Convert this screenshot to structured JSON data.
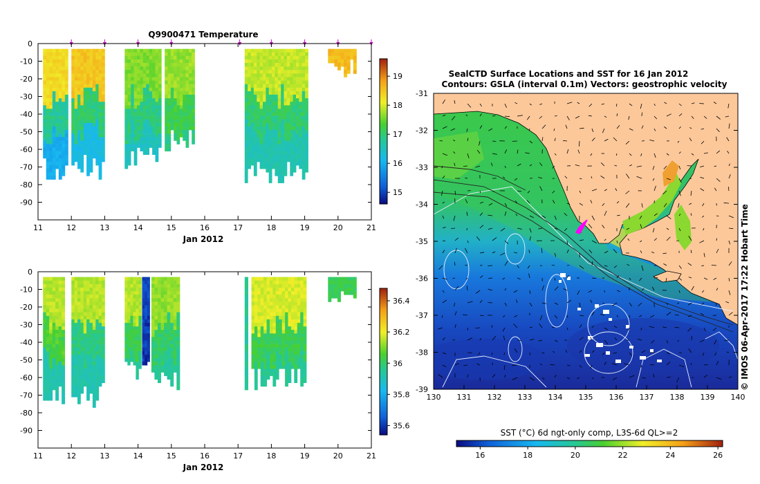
{
  "figure": {
    "left_title": "Q9900471  Temperature",
    "time_label": "Jan 2012",
    "map_title_line1": "SealCTD Surface Locations and SST for 16 Jan 2012",
    "map_title_line2": "Contours: GSLA (interval 0.1m) Vectors: geostrophic velocity",
    "credit": "© IMOS 06-Apr-2017 17:22 Hobart Time",
    "sst_colorbar_label": "SST (°C) 6d ngt-only comp, L3S-6d QL>=2"
  },
  "colors": {
    "land": "#fcc89a",
    "sea_cold": "#1a2a9a",
    "sea_mid": "#22a0e0",
    "sea_warm": "#33cc55",
    "cloud": "#ffffff",
    "seal_track": "#ff00ff"
  },
  "chart_data": [
    {
      "type": "heatmap",
      "name": "temperature-section",
      "title": "Q9900471  Temperature",
      "xlabel": "Jan 2012",
      "ylabel": "",
      "x_ticks": [
        "11",
        "12",
        "13",
        "14",
        "15",
        "16",
        "17",
        "18",
        "19",
        "20",
        "21"
      ],
      "y_ticks": [
        "0",
        "-10",
        "-20",
        "-30",
        "-40",
        "-50",
        "-60",
        "-70",
        "-80",
        "-90"
      ],
      "xlim": [
        11,
        21
      ],
      "ylim": [
        -100,
        0
      ],
      "colorbar": {
        "ticks": [
          "15",
          "16",
          "17",
          "18",
          "19"
        ],
        "range": [
          14.6,
          19.6
        ]
      },
      "surface_markers": [
        12,
        13,
        14,
        15,
        17.05,
        18,
        19,
        20,
        21
      ],
      "casts": [
        {
          "t0": 11.15,
          "t1": 11.9,
          "depth_bottom": -70,
          "surface": 18.3,
          "mid": 16.8,
          "deep": 16.0
        },
        {
          "t0": 12.0,
          "t1": 13.0,
          "depth_bottom": -69,
          "surface": 18.5,
          "mid": 17.0,
          "deep": 16.2
        },
        {
          "t0": 13.6,
          "t1": 14.7,
          "depth_bottom": -65,
          "surface": 17.6,
          "mid": 16.9,
          "deep": 16.5
        },
        {
          "t0": 14.8,
          "t1": 15.7,
          "depth_bottom": -55,
          "surface": 17.7,
          "mid": 17.2,
          "deep": 16.9
        },
        {
          "t0": 17.2,
          "t1": 19.1,
          "depth_bottom": -72,
          "surface": 17.9,
          "mid": 17.0,
          "deep": 16.6
        },
        {
          "t0": 19.7,
          "t1": 20.55,
          "depth_bottom": -12,
          "surface": 18.6,
          "mid": 18.6,
          "deep": 18.6
        }
      ]
    },
    {
      "type": "heatmap",
      "name": "salinity-section",
      "title": "",
      "xlabel": "Jan 2012",
      "ylabel": "",
      "x_ticks": [
        "11",
        "12",
        "13",
        "14",
        "15",
        "16",
        "17",
        "18",
        "19",
        "20",
        "21"
      ],
      "y_ticks": [
        "0",
        "-10",
        "-20",
        "-30",
        "-40",
        "-50",
        "-60",
        "-70",
        "-80",
        "-90"
      ],
      "xlim": [
        11,
        21
      ],
      "ylim": [
        -100,
        0
      ],
      "colorbar": {
        "ticks": [
          "35.6",
          "35.8",
          "36",
          "36.2",
          "36.4"
        ],
        "range": [
          35.54,
          36.48
        ]
      },
      "casts": [
        {
          "t0": 11.15,
          "t1": 11.8,
          "depth_bottom": -70,
          "surface": 36.15,
          "mid": 36.05,
          "deep": 35.92
        },
        {
          "t0": 12.0,
          "t1": 13.0,
          "depth_bottom": -69,
          "surface": 36.15,
          "mid": 35.97,
          "deep": 35.92
        },
        {
          "t0": 13.6,
          "t1": 14.1,
          "depth_bottom": -55,
          "surface": 36.15,
          "mid": 36.02,
          "deep": 35.95
        },
        {
          "t0": 14.12,
          "t1": 14.35,
          "depth_bottom": -52,
          "surface": 35.62,
          "mid": 35.6,
          "deep": 35.58
        },
        {
          "t0": 14.4,
          "t1": 15.25,
          "depth_bottom": -62,
          "surface": 36.12,
          "mid": 36.0,
          "deep": 35.95
        },
        {
          "t0": 17.2,
          "t1": 17.3,
          "depth_bottom": -67,
          "surface": 35.95,
          "mid": 35.95,
          "deep": 35.95
        },
        {
          "t0": 17.4,
          "t1": 19.05,
          "depth_bottom": -60,
          "surface": 36.18,
          "mid": 36.02,
          "deep": 35.95
        },
        {
          "t0": 19.7,
          "t1": 20.55,
          "depth_bottom": -12,
          "surface": 36.02,
          "mid": 36.02,
          "deep": 36.02
        }
      ]
    },
    {
      "type": "heatmap",
      "name": "sst-map",
      "title": "SealCTD Surface Locations and SST for 16 Jan 2012",
      "subtitle": "Contours: GSLA (interval 0.1m) Vectors: geostrophic velocity",
      "xlabel": "",
      "ylabel": "",
      "x_ticks": [
        "130",
        "131",
        "132",
        "133",
        "134",
        "135",
        "136",
        "137",
        "138",
        "139",
        "140"
      ],
      "y_ticks": [
        "-31",
        "-32",
        "-33",
        "-34",
        "-35",
        "-36",
        "-37",
        "-38",
        "-39"
      ],
      "xlim": [
        130,
        140
      ],
      "ylim": [
        -39,
        -31
      ],
      "colorbar": {
        "ticks": [
          "16",
          "18",
          "20",
          "22",
          "24",
          "26"
        ],
        "range": [
          15,
          26.2
        ]
      },
      "seal_location": {
        "lon": 134.8,
        "lat": -34.55
      }
    }
  ]
}
